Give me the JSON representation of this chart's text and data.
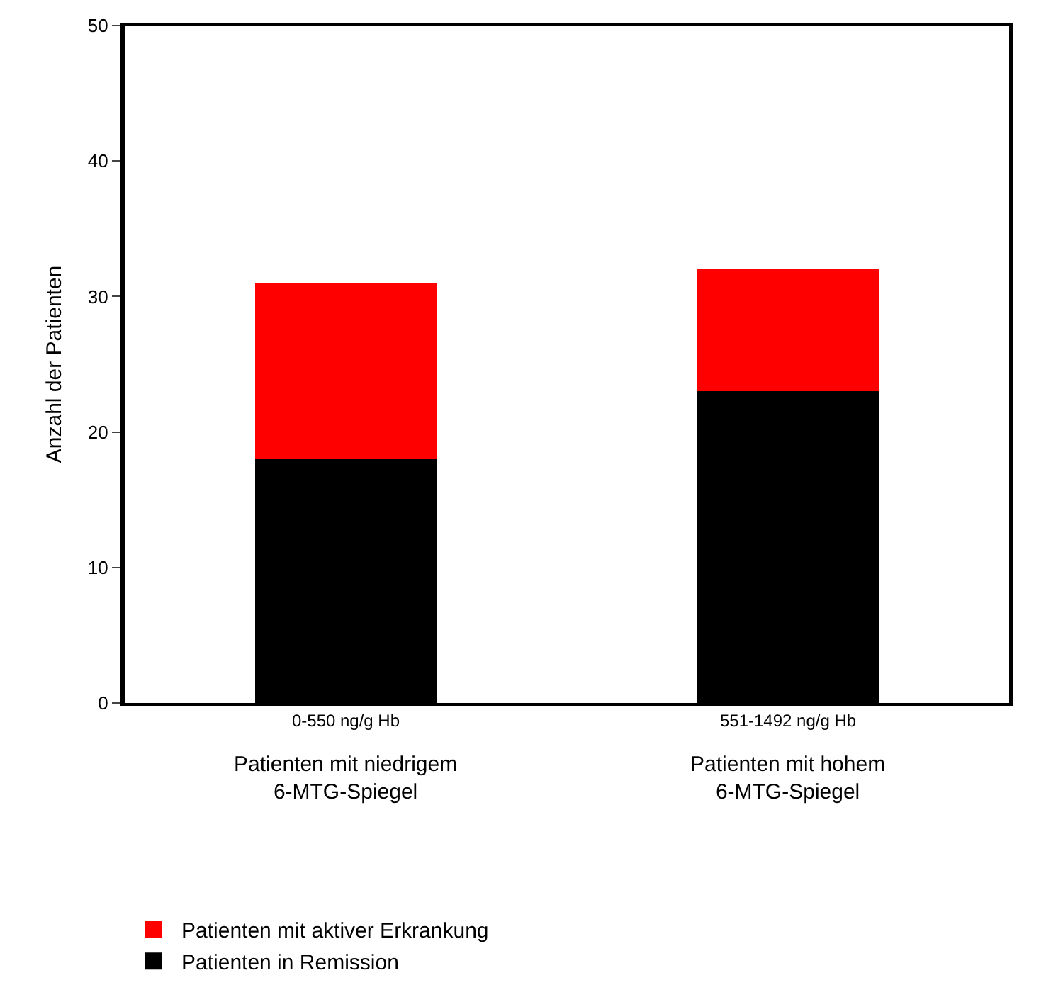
{
  "chart_data": {
    "type": "bar",
    "stacked": true,
    "ylabel": "Anzahl der Patienten",
    "categories": [
      "0-550 ng/g Hb",
      "551-1492 ng/g Hb"
    ],
    "series": [
      {
        "name": "Patienten in Remission",
        "color": "#000000",
        "values": [
          18,
          23
        ]
      },
      {
        "name": "Patienten mit aktiver Erkrankung",
        "color": "#ff0000",
        "values": [
          13,
          9
        ]
      }
    ],
    "annotations": [
      "Patienten mit niedrigem\n6-MTG-Spiegel",
      "Patienten mit hohem\n6-MTG-Spiegel"
    ],
    "ylim": [
      0,
      50
    ],
    "yticks": [
      0,
      10,
      20,
      30,
      40,
      50
    ],
    "legend": "bottom left"
  }
}
